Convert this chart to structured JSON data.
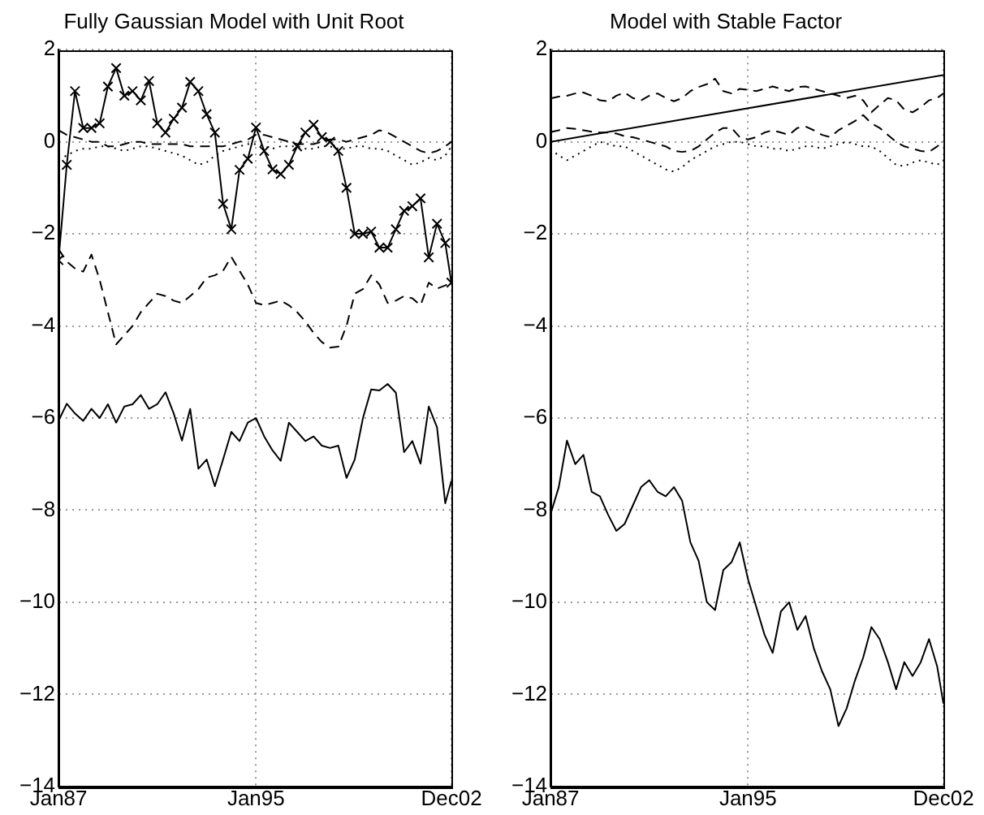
{
  "chart_data": [
    {
      "type": "line",
      "title": "Fully Gaussian Model with Unit Root",
      "x": [
        "1987-01",
        "1987-05",
        "1987-09",
        "1988-01",
        "1988-05",
        "1988-09",
        "1989-01",
        "1989-05",
        "1989-09",
        "1990-01",
        "1990-05",
        "1990-09",
        "1991-01",
        "1991-05",
        "1991-09",
        "1992-01",
        "1992-05",
        "1992-09",
        "1993-01",
        "1993-05",
        "1993-09",
        "1994-01",
        "1994-05",
        "1994-09",
        "1995-01",
        "1995-05",
        "1995-09",
        "1996-01",
        "1996-05",
        "1996-09",
        "1997-01",
        "1997-05",
        "1997-09",
        "1998-01",
        "1998-05",
        "1998-09",
        "1999-01",
        "1999-05",
        "1999-09",
        "2000-01",
        "2000-05",
        "2000-09",
        "2001-01",
        "2001-05",
        "2001-09",
        "2002-01",
        "2002-05",
        "2002-09",
        "2002-12"
      ],
      "xlim": [
        "1987-01",
        "2002-12"
      ],
      "xticks": [
        {
          "value": "1987-01",
          "label": "Jan87"
        },
        {
          "value": "1995-01",
          "label": "Jan95"
        },
        {
          "value": "2002-12",
          "label": "Dec02"
        }
      ],
      "ylim": [
        -14,
        2
      ],
      "yticks": [
        -14,
        -12,
        -10,
        -8,
        -6,
        -4,
        -2,
        0,
        2
      ],
      "grid": true,
      "series": [
        {
          "color": "#000000",
          "marker": "cross",
          "line_style": "solid",
          "values": [
            -2.57,
            -0.5,
            1.1,
            0.3,
            0.3,
            0.4,
            1.2,
            1.6,
            1.0,
            1.1,
            0.9,
            1.32,
            0.4,
            0.2,
            0.5,
            0.74,
            1.3,
            1.1,
            0.6,
            0.2,
            -1.35,
            -1.9,
            -0.61,
            -0.37,
            0.31,
            -0.2,
            -0.6,
            -0.7,
            -0.5,
            -0.1,
            0.2,
            0.37,
            0.1,
            0,
            -0.2,
            -1.0,
            -2.0,
            -2.0,
            -1.95,
            -2.3,
            -2.3,
            -1.9,
            -1.5,
            -1.4,
            -1.23,
            -2.51,
            -1.78,
            -2.2,
            -3.06
          ]
        },
        {
          "color": "#000000",
          "marker": "none",
          "line_style": "dashed",
          "values": [
            -2.33,
            -2.6,
            -2.75,
            -2.82,
            -2.45,
            -3.0,
            -3.7,
            -4.4,
            -4.2,
            -4.0,
            -3.7,
            -3.5,
            -3.3,
            -3.35,
            -3.45,
            -3.5,
            -3.35,
            -3.2,
            -2.95,
            -2.9,
            -2.8,
            -2.5,
            -2.8,
            -3.1,
            -3.5,
            -3.55,
            -3.5,
            -3.45,
            -3.55,
            -3.7,
            -3.9,
            -4.15,
            -4.35,
            -4.47,
            -4.45,
            -4.0,
            -3.3,
            -3.2,
            -2.9,
            -3.1,
            -3.5,
            -3.45,
            -3.35,
            -3.4,
            -3.55,
            -3.06,
            -3.19,
            -3.12,
            -3.06
          ]
        },
        {
          "color": "#000000",
          "marker": "none",
          "line_style": "dashed",
          "values": [
            0.25,
            0.15,
            0.1,
            0.05,
            0.0,
            0.0,
            -0.1,
            -0.1,
            -0.05,
            0.0,
            0.0,
            -0.05,
            -0.05,
            -0.05,
            -0.05,
            -0.05,
            -0.1,
            -0.1,
            -0.1,
            -0.1,
            -0.1,
            -0.05,
            0.0,
            0.05,
            0.15,
            0.15,
            0.1,
            0.05,
            0.0,
            -0.05,
            -0.05,
            -0.05,
            0.0,
            0.05,
            0.05,
            0.0,
            0.05,
            0.1,
            0.15,
            0.25,
            0.2,
            0.1,
            0.0,
            -0.1,
            -0.2,
            -0.25,
            -0.2,
            -0.1,
            0.0
          ]
        },
        {
          "color": "#000000",
          "marker": "none",
          "line_style": "dotted",
          "values": [
            -0.37,
            -0.3,
            -0.2,
            -0.15,
            -0.15,
            -0.1,
            -0.1,
            -0.15,
            -0.2,
            -0.15,
            -0.1,
            -0.1,
            -0.15,
            -0.2,
            -0.25,
            -0.3,
            -0.4,
            -0.5,
            -0.45,
            -0.3,
            -0.2,
            -0.15,
            -0.1,
            -0.05,
            -0.05,
            -0.1,
            -0.15,
            -0.1,
            -0.1,
            -0.1,
            -0.15,
            -0.15,
            -0.1,
            -0.1,
            -0.15,
            -0.15,
            -0.1,
            -0.1,
            -0.15,
            -0.15,
            -0.2,
            -0.3,
            -0.4,
            -0.5,
            -0.45,
            -0.35,
            -0.4,
            -0.3,
            -0.1
          ]
        },
        {
          "color": "#000000",
          "marker": "none",
          "line_style": "solid",
          "values": [
            -6.06,
            -5.69,
            -5.9,
            -6.06,
            -5.8,
            -6.0,
            -5.7,
            -6.1,
            -5.75,
            -5.7,
            -5.5,
            -5.8,
            -5.7,
            -5.44,
            -5.9,
            -6.49,
            -5.8,
            -7.1,
            -6.9,
            -7.48,
            -6.9,
            -6.3,
            -6.5,
            -6.1,
            -6.0,
            -6.4,
            -6.7,
            -6.93,
            -6.1,
            -6.3,
            -6.5,
            -6.4,
            -6.6,
            -6.65,
            -6.6,
            -7.3,
            -6.9,
            -6.0,
            -5.38,
            -5.4,
            -5.26,
            -5.45,
            -6.74,
            -6.5,
            -6.99,
            -5.75,
            -6.2,
            -7.85,
            -7.36
          ]
        }
      ]
    },
    {
      "type": "line",
      "title": "Model with Stable Factor",
      "x": [
        "1987-01",
        "1987-05",
        "1987-09",
        "1988-01",
        "1988-05",
        "1988-09",
        "1989-01",
        "1989-05",
        "1989-09",
        "1990-01",
        "1990-05",
        "1990-09",
        "1991-01",
        "1991-05",
        "1991-09",
        "1992-01",
        "1992-05",
        "1992-09",
        "1993-01",
        "1993-05",
        "1993-09",
        "1994-01",
        "1994-05",
        "1994-09",
        "1995-01",
        "1995-05",
        "1995-09",
        "1996-01",
        "1996-05",
        "1996-09",
        "1997-01",
        "1997-05",
        "1997-09",
        "1998-01",
        "1998-05",
        "1998-09",
        "1999-01",
        "1999-05",
        "1999-09",
        "2000-01",
        "2000-05",
        "2000-09",
        "2001-01",
        "2001-05",
        "2001-09",
        "2002-01",
        "2002-05",
        "2002-09",
        "2002-12"
      ],
      "xlim": [
        "1987-01",
        "2002-12"
      ],
      "xticks": [
        {
          "value": "1987-01",
          "label": "Jan87"
        },
        {
          "value": "1995-01",
          "label": "Jan95"
        },
        {
          "value": "2002-12",
          "label": "Dec02"
        }
      ],
      "ylim": [
        -14,
        2
      ],
      "yticks": [
        -14,
        -12,
        -10,
        -8,
        -6,
        -4,
        -2,
        0,
        2
      ],
      "grid": true,
      "series": [
        {
          "color": "#000000",
          "marker": "none",
          "line_style": "solid",
          "x": [
            "1987-01",
            "2002-12"
          ],
          "values": [
            0,
            1.45
          ]
        },
        {
          "color": "#000000",
          "marker": "none",
          "line_style": "dashed",
          "values": [
            0.94,
            0.98,
            1.0,
            1.05,
            1.07,
            1.0,
            0.9,
            0.88,
            1.0,
            1.07,
            0.95,
            0.9,
            1.0,
            1.05,
            0.95,
            0.88,
            0.95,
            1.1,
            1.19,
            1.25,
            1.37,
            1.1,
            1.05,
            1.15,
            1.13,
            1.1,
            1.15,
            1.2,
            1.15,
            1.1,
            1.19,
            1.2,
            1.15,
            1.1,
            1.05,
            1.0,
            0.95,
            1.0,
            0.9,
            0.64,
            0.8,
            0.95,
            0.9,
            0.7,
            0.64,
            0.75,
            0.9,
            0.95,
            1.05
          ]
        },
        {
          "color": "#000000",
          "marker": "none",
          "line_style": "dashed",
          "values": [
            0.21,
            0.25,
            0.3,
            0.28,
            0.25,
            0.22,
            0.2,
            0.2,
            0.18,
            0.12,
            0.1,
            0.05,
            0.0,
            -0.05,
            -0.1,
            -0.2,
            -0.22,
            -0.2,
            -0.1,
            0.05,
            0.2,
            0.3,
            0.3,
            0.1,
            0.05,
            0.1,
            0.2,
            0.25,
            0.2,
            0.15,
            0.3,
            0.33,
            0.25,
            0.15,
            0.1,
            0.25,
            0.35,
            0.45,
            0.58,
            0.4,
            0.3,
            0.15,
            0.0,
            -0.1,
            -0.15,
            -0.2,
            -0.22,
            -0.1,
            0.0
          ]
        },
        {
          "color": "#000000",
          "marker": "none",
          "line_style": "dotted",
          "values": [
            -0.16,
            -0.3,
            -0.4,
            -0.3,
            -0.2,
            -0.1,
            0.0,
            -0.05,
            -0.1,
            -0.1,
            -0.2,
            -0.3,
            -0.4,
            -0.5,
            -0.6,
            -0.65,
            -0.55,
            -0.4,
            -0.3,
            -0.2,
            -0.1,
            -0.05,
            0.0,
            0.0,
            -0.05,
            -0.1,
            -0.1,
            -0.15,
            -0.15,
            -0.2,
            -0.15,
            -0.1,
            -0.1,
            -0.15,
            -0.1,
            -0.05,
            0.0,
            -0.05,
            -0.1,
            -0.1,
            -0.2,
            -0.35,
            -0.5,
            -0.53,
            -0.45,
            -0.4,
            -0.45,
            -0.5,
            -0.4
          ]
        },
        {
          "color": "#000000",
          "marker": "none",
          "line_style": "solid",
          "values": [
            -8.09,
            -7.5,
            -6.49,
            -7.0,
            -6.8,
            -7.6,
            -7.7,
            -8.1,
            -8.45,
            -8.3,
            -7.9,
            -7.5,
            -7.35,
            -7.6,
            -7.7,
            -7.5,
            -7.8,
            -8.7,
            -9.1,
            -10.0,
            -10.17,
            -9.3,
            -9.13,
            -8.7,
            -9.5,
            -10.1,
            -10.7,
            -11.1,
            -10.2,
            -10.0,
            -10.6,
            -10.3,
            -11.0,
            -11.5,
            -11.89,
            -12.69,
            -12.3,
            -11.7,
            -11.2,
            -10.54,
            -10.8,
            -11.3,
            -11.89,
            -11.3,
            -11.6,
            -11.3,
            -10.8,
            -11.4,
            -12.2
          ]
        }
      ]
    }
  ]
}
